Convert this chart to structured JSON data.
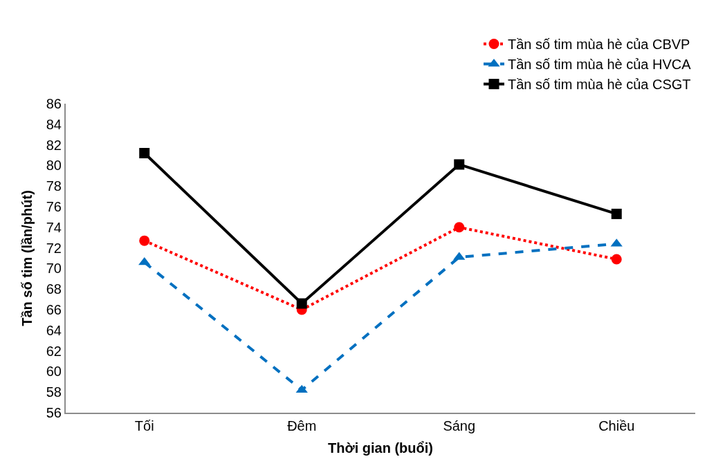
{
  "chart_data": {
    "type": "line",
    "xlabel": "Thời gian (buổi)",
    "ylabel": "Tần số tim (lần/phút)",
    "categories": [
      "Tối",
      "Đêm",
      "Sáng",
      "Chiều"
    ],
    "series": [
      {
        "name": "Tần số tim mùa hè của CBVP",
        "color": "#ff0000",
        "marker": "circle",
        "line_style": "dotted",
        "values": [
          72.7,
          66.0,
          74.0,
          70.9
        ]
      },
      {
        "name": "Tần số tim mùa hè của HVCA",
        "color": "#0070c0",
        "marker": "triangle",
        "line_style": "dashed",
        "values": [
          70.6,
          58.2,
          71.1,
          72.4
        ]
      },
      {
        "name": "Tần số tim mùa hè của CSGT",
        "color": "#000000",
        "marker": "square",
        "line_style": "solid",
        "values": [
          81.2,
          66.6,
          80.1,
          75.3
        ]
      }
    ],
    "ylim": [
      56,
      86
    ],
    "yticks": [
      56,
      58,
      60,
      62,
      64,
      66,
      68,
      70,
      72,
      74,
      76,
      78,
      80,
      82,
      84,
      86
    ],
    "legend": "top right"
  }
}
